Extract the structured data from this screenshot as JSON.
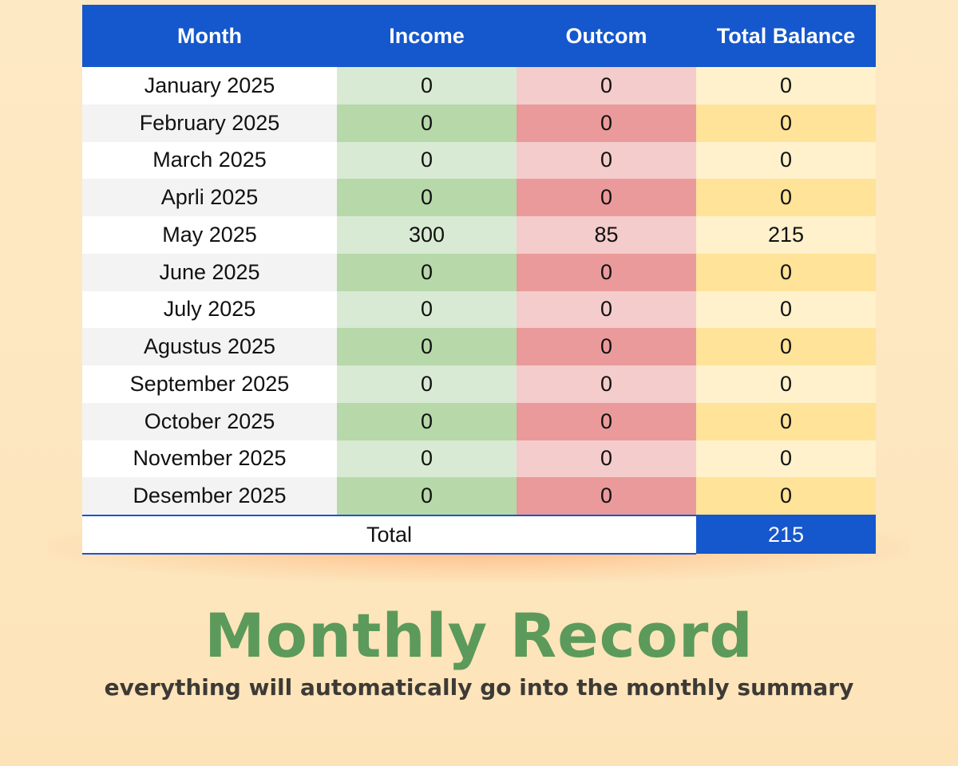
{
  "table": {
    "headers": {
      "month": "Month",
      "income": "Income",
      "outcome": "Outcom",
      "balance": "Total Balance"
    },
    "rows": [
      {
        "month": "January 2025",
        "income": "0",
        "outcome": "0",
        "balance": "0"
      },
      {
        "month": "February 2025",
        "income": "0",
        "outcome": "0",
        "balance": "0"
      },
      {
        "month": "March 2025",
        "income": "0",
        "outcome": "0",
        "balance": "0"
      },
      {
        "month": "Aprli 2025",
        "income": "0",
        "outcome": "0",
        "balance": "0"
      },
      {
        "month": "May 2025",
        "income": "300",
        "outcome": "85",
        "balance": "215"
      },
      {
        "month": "June 2025",
        "income": "0",
        "outcome": "0",
        "balance": "0"
      },
      {
        "month": "July 2025",
        "income": "0",
        "outcome": "0",
        "balance": "0"
      },
      {
        "month": "Agustus 2025",
        "income": "0",
        "outcome": "0",
        "balance": "0"
      },
      {
        "month": "September 2025",
        "income": "0",
        "outcome": "0",
        "balance": "0"
      },
      {
        "month": "October 2025",
        "income": "0",
        "outcome": "0",
        "balance": "0"
      },
      {
        "month": "November 2025",
        "income": "0",
        "outcome": "0",
        "balance": "0"
      },
      {
        "month": "Desember 2025",
        "income": "0",
        "outcome": "0",
        "balance": "0"
      }
    ],
    "total": {
      "label": "Total",
      "value": "215"
    }
  },
  "title": "Monthly Record",
  "subtitle": "everything will automatically go into the monthly summary",
  "colors": {
    "header_blue": "#1557cc",
    "title_green": "#5b9a5b",
    "background_cream": "#fde7c0",
    "income_light": "#d8ead3",
    "income_dark": "#b7d8a9",
    "outcome_light": "#f3cccb",
    "outcome_dark": "#ea9a9a",
    "balance_light": "#fef1cc",
    "balance_dark": "#fee398"
  }
}
